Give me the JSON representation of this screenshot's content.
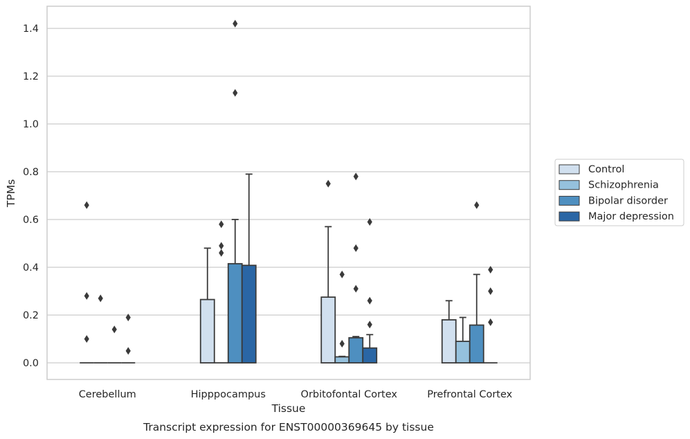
{
  "chart_data": {
    "type": "bar",
    "caption": "Transcript expression for ENST00000369645 by tissue",
    "xlabel": "Tissue",
    "ylabel": "TPMs",
    "ylim": [
      -0.07,
      1.49
    ],
    "yticks": [
      0.0,
      0.2,
      0.4,
      0.6,
      0.8,
      1.0,
      1.2,
      1.4
    ],
    "ytick_labels": [
      "0.0",
      "0.2",
      "0.4",
      "0.6",
      "0.8",
      "1.0",
      "1.2",
      "1.4"
    ],
    "grid": "horizontal",
    "legend_position": "right",
    "categories": [
      "Cerebellum",
      "Hipppocampus",
      "Orbitofontal Cortex",
      "Prefrontal Cortex"
    ],
    "series": [
      {
        "name": "Control",
        "color": "#d1e0ef",
        "values": [
          0.0,
          0.265,
          0.275,
          0.18
        ],
        "err_upper": [
          0.0,
          0.48,
          0.57,
          0.26
        ],
        "outliers": [
          [
            0.66,
            0.28,
            0.1
          ],
          [],
          [
            0.75
          ],
          []
        ]
      },
      {
        "name": "Schizophrenia",
        "color": "#95c1dd",
        "values": [
          0.0,
          0.0,
          0.025,
          0.09
        ],
        "err_upper": [
          0.0,
          0.0,
          0.027,
          0.19
        ],
        "outliers": [
          [
            0.27
          ],
          [
            0.58,
            0.49,
            0.46
          ],
          [
            0.37,
            0.08
          ],
          []
        ]
      },
      {
        "name": "Bipolar disorder",
        "color": "#4e8fc0",
        "values": [
          0.0,
          0.415,
          0.105,
          0.158
        ],
        "err_upper": [
          0.0,
          0.6,
          0.11,
          0.37
        ],
        "outliers": [
          [
            0.14
          ],
          [
            1.42,
            1.13
          ],
          [
            0.78,
            0.48,
            0.31
          ],
          [
            0.66
          ]
        ]
      },
      {
        "name": "Major depression",
        "color": "#2a66a5",
        "values": [
          0.0,
          0.408,
          0.062,
          0.0
        ],
        "err_upper": [
          0.0,
          0.79,
          0.118,
          0.0
        ],
        "outliers": [
          [
            0.19,
            0.05
          ],
          [],
          [
            0.59,
            0.26,
            0.16
          ],
          [
            0.39,
            0.3,
            0.17
          ]
        ]
      }
    ]
  }
}
